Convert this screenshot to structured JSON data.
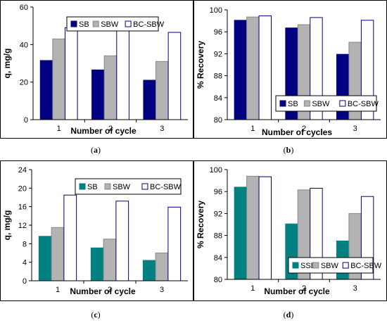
{
  "captions": [
    "(a)",
    "(b)",
    "(c)",
    "(d)"
  ],
  "caption_letters": [
    "a",
    "b",
    "c",
    "d"
  ],
  "chart_data": [
    {
      "type": "bar",
      "categories": [
        "1",
        "2",
        "3"
      ],
      "series": [
        {
          "name": "SB",
          "values": [
            31.5,
            26.5,
            21.0
          ],
          "color": "#000080"
        },
        {
          "name": "SBW",
          "values": [
            43.0,
            34.0,
            31.0
          ],
          "color": "#b3b3b3"
        },
        {
          "name": "BC-SBW",
          "values": [
            49.0,
            48.0,
            46.5
          ],
          "color": "#ffffff"
        }
      ],
      "ylabel": "q, mg/g",
      "xlabel": "Number of cycle",
      "ylim": [
        0,
        60
      ],
      "yticks": [
        "0",
        "20",
        "40",
        "60"
      ],
      "legend": "top-center",
      "grid": false
    },
    {
      "type": "bar",
      "categories": [
        "1",
        "2",
        "3"
      ],
      "series": [
        {
          "name": "SB",
          "values": [
            98.1,
            96.7,
            91.9
          ],
          "color": "#000080"
        },
        {
          "name": "SBW",
          "values": [
            98.7,
            97.3,
            94.1
          ],
          "color": "#b3b3b3"
        },
        {
          "name": "BC-SBW",
          "values": [
            98.9,
            98.6,
            98.1
          ],
          "color": "#ffffff"
        }
      ],
      "ylabel": "% Recovery",
      "xlabel": "Number of cycles",
      "ylim": [
        80,
        100
      ],
      "yticks": [
        "80",
        "84",
        "88",
        "92",
        "96",
        "100"
      ],
      "legend": "bottom-right",
      "grid": false
    },
    {
      "type": "bar",
      "categories": [
        "1",
        "2",
        "3"
      ],
      "series": [
        {
          "name": "SB",
          "values": [
            9.6,
            7.1,
            4.4
          ],
          "color": "#008080"
        },
        {
          "name": "SBW",
          "values": [
            11.5,
            9.0,
            6.0
          ],
          "color": "#b3b3b3"
        },
        {
          "name": "BC-SBW",
          "values": [
            18.5,
            17.2,
            15.9
          ],
          "color": "#ffffff"
        }
      ],
      "ylabel": "q, mg/g",
      "xlabel": "Number of cycle",
      "ylim": [
        0,
        24
      ],
      "yticks": [
        "0",
        "4",
        "8",
        "12",
        "16",
        "20",
        "24"
      ],
      "legend": "top-right",
      "grid": false
    },
    {
      "type": "bar",
      "categories": [
        "1",
        "2",
        "3"
      ],
      "series": [
        {
          "name": "SSB",
          "values": [
            96.8,
            90.1,
            87.0
          ],
          "color": "#008080"
        },
        {
          "name": "SBW",
          "values": [
            98.8,
            96.3,
            92.0
          ],
          "color": "#b3b3b3"
        },
        {
          "name": "BC-SBW",
          "values": [
            98.7,
            96.6,
            95.1
          ],
          "color": "#ffffff"
        }
      ],
      "ylabel": "% Recovery",
      "xlabel": "Number of cycle",
      "ylim": [
        80,
        100
      ],
      "yticks": [
        "80",
        "84",
        "88",
        "92",
        "96",
        "100"
      ],
      "legend": "bottom-right",
      "grid": false
    }
  ]
}
